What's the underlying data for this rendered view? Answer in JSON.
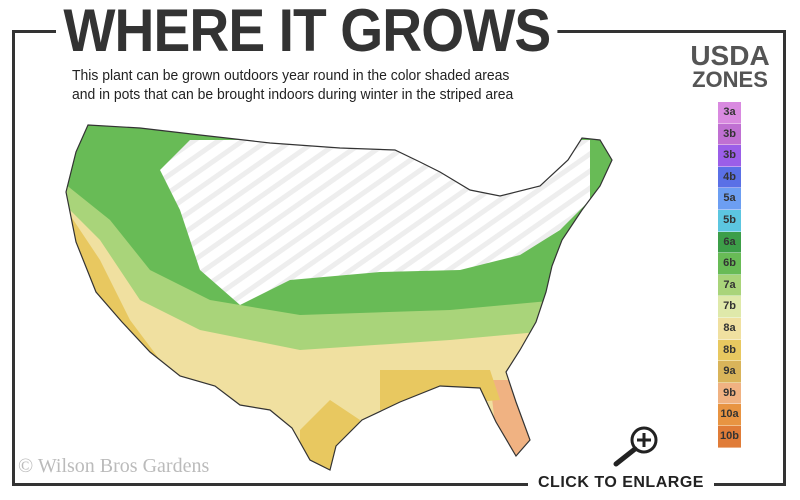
{
  "title": "WHERE IT GROWS",
  "subtitle_line1": "This plant can be grown outdoors year round in the color shaded areas",
  "subtitle_line2": "and in pots that can be brought indoors during winter in the striped area",
  "legend": {
    "title_line1": "USDA",
    "title_line2": "ZONES",
    "zones": [
      {
        "label": "3a",
        "color": "#d98ae0"
      },
      {
        "label": "3b",
        "color": "#c070d2"
      },
      {
        "label": "3b",
        "color": "#9b5ee8"
      },
      {
        "label": "4b",
        "color": "#5a70e6"
      },
      {
        "label": "5a",
        "color": "#6c9ef2"
      },
      {
        "label": "5b",
        "color": "#5cc6e0"
      },
      {
        "label": "6a",
        "color": "#3c9e48"
      },
      {
        "label": "6b",
        "color": "#68bb56"
      },
      {
        "label": "7a",
        "color": "#a9d47a"
      },
      {
        "label": "7b",
        "color": "#dfe9aa"
      },
      {
        "label": "8a",
        "color": "#f0e0a0"
      },
      {
        "label": "8b",
        "color": "#e8c860"
      },
      {
        "label": "9a",
        "color": "#d9b45a"
      },
      {
        "label": "9b",
        "color": "#f0b282"
      },
      {
        "label": "10a",
        "color": "#e89442"
      },
      {
        "label": "10b",
        "color": "#e07c38"
      }
    ]
  },
  "enlarge_label": "CLICK TO ENLARGE",
  "watermark": "© Wilson Bros Gardens"
}
